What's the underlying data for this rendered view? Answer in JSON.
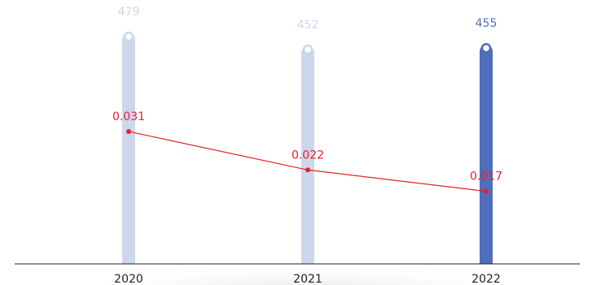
{
  "chart_data": {
    "type": "bar",
    "categories": [
      "2020",
      "2021",
      "2022"
    ],
    "series": [
      {
        "values": [
          479,
          452,
          455
        ]
      },
      {
        "type": "line",
        "values": [
          0.031,
          0.022,
          0.017
        ]
      }
    ],
    "ylim": [
      0,
      479
    ],
    "ylim_right": [
      0,
      0.054
    ],
    "grid": false,
    "legend": "none",
    "colors": {
      "bar": "#cdd7ec",
      "bar_highlight": "#4f6ebb",
      "bar_value_text": "#cdd7ec",
      "bar_value_text_highlight": "#4f6ebb",
      "line": "#e8202a",
      "axis": "#222222"
    },
    "highlight_index": 2
  }
}
